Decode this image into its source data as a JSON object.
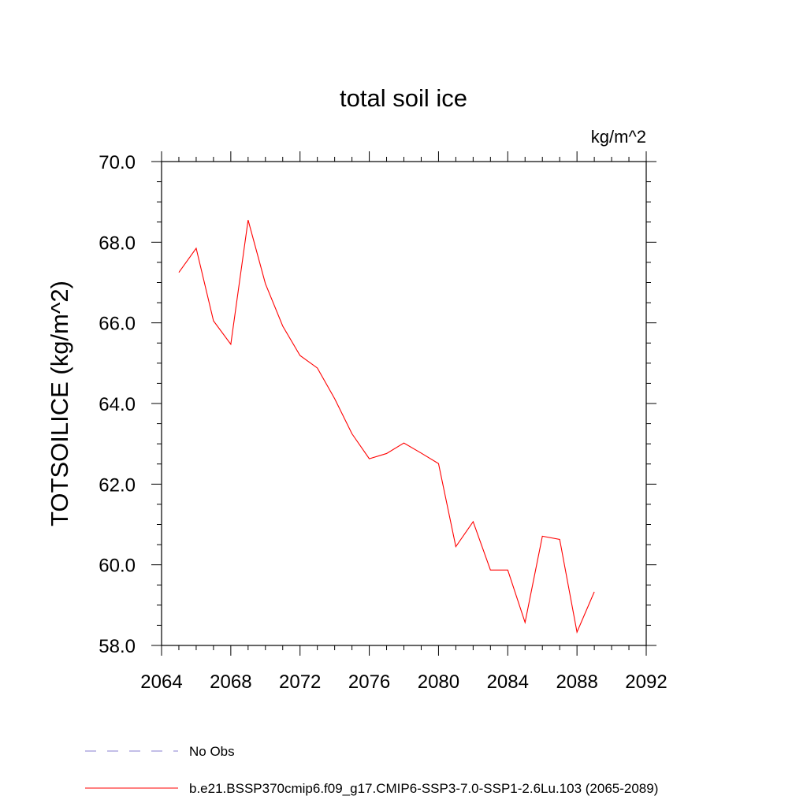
{
  "chart_data": {
    "type": "line",
    "title": "total soil ice",
    "units_label": "kg/m^2",
    "xlabel": "",
    "ylabel": "TOTSOILICE  (kg/m^2)",
    "xlim": [
      2064,
      2092
    ],
    "ylim": [
      58.0,
      70.0
    ],
    "x_ticks": [
      2064,
      2068,
      2072,
      2076,
      2080,
      2084,
      2088,
      2092
    ],
    "x_tick_labels": [
      "2064",
      "2068",
      "2072",
      "2076",
      "2080",
      "2084",
      "2088",
      "2092"
    ],
    "y_ticks": [
      58.0,
      60.0,
      62.0,
      64.0,
      66.0,
      68.0,
      70.0
    ],
    "y_tick_labels": [
      "58.0",
      "60.0",
      "62.0",
      "64.0",
      "66.0",
      "68.0",
      "70.0"
    ],
    "grid": false,
    "legend_position": "bottom-left",
    "series": [
      {
        "name": "b.e21.BSSP370cmip6.f09_g17.CMIP6-SSP3-7.0-SSP1-2.6Lu.103 (2065-2089)",
        "color": "#ff0000",
        "style": "solid",
        "x": [
          2065,
          2066,
          2067,
          2068,
          2069,
          2070,
          2071,
          2072,
          2073,
          2074,
          2075,
          2076,
          2077,
          2078,
          2079,
          2080,
          2081,
          2082,
          2083,
          2084,
          2085,
          2086,
          2087,
          2088,
          2089
        ],
        "y": [
          67.25,
          67.85,
          66.05,
          65.47,
          68.55,
          66.97,
          65.92,
          65.19,
          64.88,
          64.12,
          63.25,
          62.63,
          62.76,
          63.02,
          62.77,
          62.51,
          60.45,
          61.07,
          59.87,
          59.87,
          58.57,
          60.71,
          60.63,
          58.33,
          59.33
        ]
      }
    ],
    "legend": [
      {
        "label": "No Obs",
        "color": "#8a7fd0",
        "style": "dashed"
      },
      {
        "label": "b.e21.BSSP370cmip6.f09_g17.CMIP6-SSP3-7.0-SSP1-2.6Lu.103 (2065-2089)",
        "color": "#ff0000",
        "style": "solid"
      }
    ]
  }
}
